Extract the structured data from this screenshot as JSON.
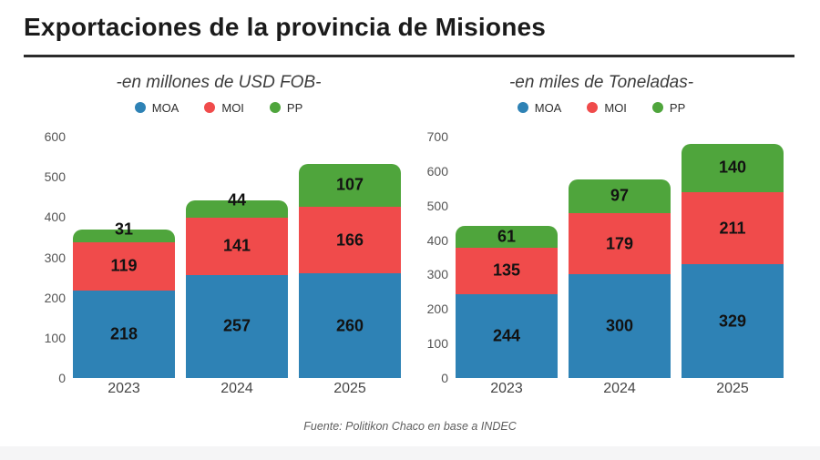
{
  "page": {
    "title": "Exportaciones de la provincia de Misiones",
    "footer": "Fuente: Politikon Chaco en base a INDEC"
  },
  "colors": {
    "MOA": "#2E82B5",
    "MOI": "#F04B4B",
    "PP": "#4FA53C"
  },
  "chart_data": [
    {
      "type": "bar",
      "stacked": true,
      "title": "-en millones de USD FOB-",
      "categories": [
        "2023",
        "2024",
        "2025"
      ],
      "series": [
        {
          "name": "MOA",
          "values": [
            218,
            257,
            260
          ]
        },
        {
          "name": "MOI",
          "values": [
            119,
            141,
            166
          ]
        },
        {
          "name": "PP",
          "values": [
            31,
            44,
            107
          ]
        }
      ],
      "totals": [
        368,
        442,
        533
      ],
      "ylim": [
        0,
        600
      ],
      "ytick_step": 100,
      "grid": false,
      "legend_position": "top"
    },
    {
      "type": "bar",
      "stacked": true,
      "title": "-en miles de Toneladas-",
      "categories": [
        "2023",
        "2024",
        "2025"
      ],
      "series": [
        {
          "name": "MOA",
          "values": [
            244,
            300,
            329
          ]
        },
        {
          "name": "MOI",
          "values": [
            135,
            179,
            211
          ]
        },
        {
          "name": "PP",
          "values": [
            61,
            97,
            140
          ]
        }
      ],
      "totals": [
        440,
        576,
        680
      ],
      "ylim": [
        0,
        700
      ],
      "ytick_step": 100,
      "grid": false,
      "legend_position": "top"
    }
  ]
}
